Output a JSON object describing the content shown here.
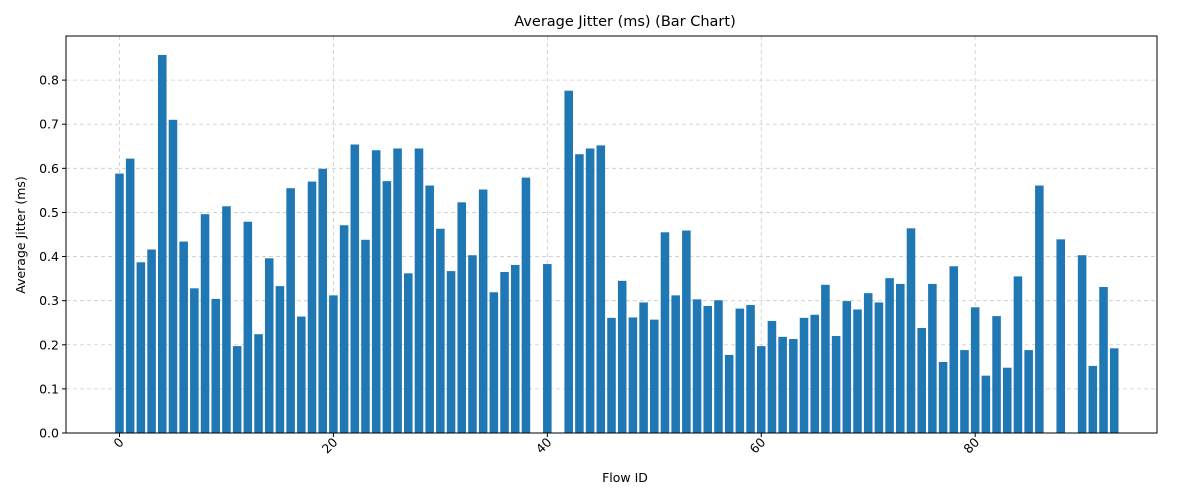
{
  "chart_data": {
    "type": "bar",
    "title": "Average Jitter (ms) (Bar Chart)",
    "xlabel": "Flow ID",
    "ylabel": "Average Jitter (ms)",
    "xlim": [
      -5,
      97
    ],
    "ylim": [
      0,
      0.9
    ],
    "x_ticks": [
      0,
      20,
      40,
      60,
      80
    ],
    "x_tick_labels": [
      "0",
      "20",
      "40",
      "60",
      "80"
    ],
    "y_ticks": [
      0.0,
      0.1,
      0.2,
      0.3,
      0.4,
      0.5,
      0.6,
      0.7,
      0.8
    ],
    "y_tick_labels": [
      "0.0",
      "0.1",
      "0.2",
      "0.3",
      "0.4",
      "0.5",
      "0.6",
      "0.7",
      "0.8"
    ],
    "grid": true,
    "bar_color": "#1f77b4",
    "x": [
      0,
      1,
      2,
      3,
      4,
      5,
      6,
      7,
      8,
      9,
      10,
      11,
      12,
      13,
      14,
      15,
      16,
      17,
      18,
      19,
      20,
      21,
      22,
      23,
      24,
      25,
      26,
      27,
      28,
      29,
      30,
      31,
      32,
      33,
      34,
      35,
      36,
      37,
      38,
      40,
      42,
      43,
      44,
      45,
      46,
      47,
      48,
      49,
      50,
      51,
      52,
      53,
      54,
      55,
      56,
      57,
      58,
      59,
      60,
      61,
      62,
      63,
      64,
      65,
      66,
      67,
      68,
      69,
      70,
      71,
      72,
      73,
      74,
      75,
      76,
      77,
      78,
      79,
      80,
      81,
      82,
      83,
      84,
      85,
      86,
      88,
      90,
      91,
      92,
      93
    ],
    "values": [
      0.588,
      0.622,
      0.387,
      0.416,
      0.857,
      0.71,
      0.434,
      0.328,
      0.496,
      0.304,
      0.514,
      0.197,
      0.479,
      0.224,
      0.396,
      0.333,
      0.555,
      0.264,
      0.57,
      0.599,
      0.312,
      0.471,
      0.654,
      0.438,
      0.641,
      0.571,
      0.645,
      0.362,
      0.645,
      0.561,
      0.463,
      0.367,
      0.523,
      0.403,
      0.552,
      0.319,
      0.365,
      0.381,
      0.579,
      0.383,
      0.776,
      0.632,
      0.645,
      0.652,
      0.261,
      0.345,
      0.262,
      0.296,
      0.257,
      0.455,
      0.312,
      0.459,
      0.303,
      0.288,
      0.301,
      0.177,
      0.282,
      0.29,
      0.197,
      0.254,
      0.218,
      0.213,
      0.261,
      0.268,
      0.336,
      0.22,
      0.299,
      0.28,
      0.317,
      0.296,
      0.351,
      0.338,
      0.464,
      0.238,
      0.338,
      0.161,
      0.378,
      0.188,
      0.285,
      0.13,
      0.265,
      0.148,
      0.355,
      0.188,
      0.561,
      0.439,
      0.403,
      0.152,
      0.331,
      0.192
    ]
  }
}
